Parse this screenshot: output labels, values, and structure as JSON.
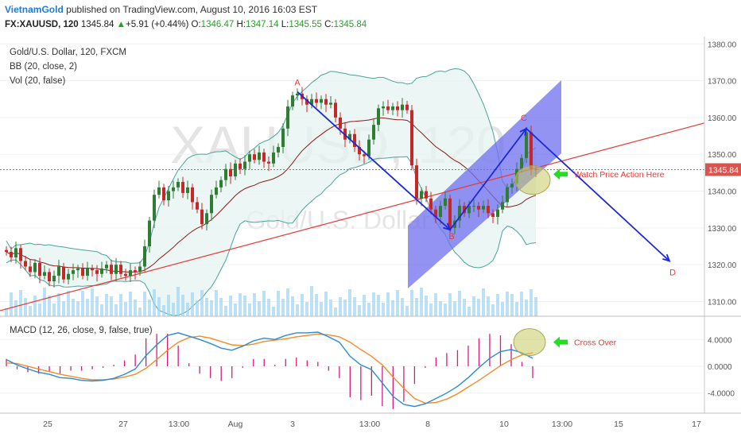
{
  "header": {
    "brand": "VietnamGold",
    "published_text": "published on TradingView.com, August 10, 2016 16:03 EST",
    "symbol": "FX:XAUUSD, 120",
    "last": "1345.84",
    "change": "+5.91 (+0.44%)",
    "o_label": "O:",
    "o": "1346.47",
    "h_label": "H:",
    "h": "1347.14",
    "l_label": "L:",
    "l": "1345.55",
    "c_label": "C:",
    "c": "1345.84"
  },
  "legend": {
    "title": "Gold/U.S. Dollar, 120, FXCM",
    "bb": "BB (20, close, 2)",
    "vol": "Vol (20, false)",
    "macd": "MACD (12, 26, close, 9, false, true)"
  },
  "watermark": {
    "symbol": "XAUUSD, 120",
    "name": "Gold/U.S. Dollar"
  },
  "annotations": {
    "a": "A",
    "b": "B",
    "c": "C",
    "d": "D",
    "watch": "Watch Price Action Here",
    "cross": "Cross Over"
  },
  "colors": {
    "up": "#2e7d32",
    "down": "#c62828",
    "bb": "#4aa39a",
    "bb_fill": "#e6f4f2",
    "ma": "#8b1a1a",
    "arrow": "#1c28d9",
    "channel": "#6f6ff0",
    "trend": "#e53935",
    "circle": "#c8c864",
    "green_arrow": "#22dd22",
    "macd": "#2a8bd6",
    "signal": "#f28c28",
    "hist": "#d81b7a",
    "price_tag": "#d9534f",
    "volume": "#9fd4f0"
  },
  "chart_data": [
    {
      "type": "candlestick",
      "title": "Gold/U.S. Dollar, 120, FXCM",
      "xlabel": "",
      "ylabel": "",
      "ylim": [
        1306,
        1382
      ],
      "y_ticks": [
        1310,
        1320,
        1330,
        1340,
        1350,
        1360,
        1370,
        1380
      ],
      "x_ticks": [
        "25",
        "27",
        "13:00",
        "Aug",
        "3",
        "13:00",
        "8",
        "10",
        "13:00",
        "15",
        "17"
      ],
      "last_price": 1345.84,
      "wave_points": [
        {
          "label": "A",
          "bar": 61,
          "price": 1367
        },
        {
          "label": "B",
          "bar": 93,
          "price": 1329.5
        },
        {
          "label": "C",
          "bar": 109,
          "price": 1357
        },
        {
          "label": "D",
          "bar": 139,
          "price": 1321
        }
      ],
      "closes": [
        1323.5,
        1322.0,
        1324.5,
        1321.0,
        1319.5,
        1318.0,
        1320.5,
        1317.0,
        1318.0,
        1315.5,
        1317.0,
        1319.5,
        1316.0,
        1317.5,
        1318.5,
        1319.0,
        1317.0,
        1319.0,
        1318.5,
        1317.5,
        1319.0,
        1320.0,
        1317.5,
        1320.0,
        1317.5,
        1317.0,
        1318.5,
        1318.0,
        1319.5,
        1325.0,
        1332.0,
        1339.0,
        1341.0,
        1337.5,
        1340.0,
        1341.0,
        1342.5,
        1339.5,
        1341.0,
        1337.0,
        1335.0,
        1331.0,
        1334.0,
        1339.0,
        1341.0,
        1343.0,
        1346.0,
        1344.0,
        1347.5,
        1346.0,
        1348.0,
        1350.0,
        1348.5,
        1350.5,
        1348.0,
        1347.5,
        1350.5,
        1352.0,
        1357.0,
        1363.0,
        1366.0,
        1366.5,
        1365.0,
        1363.5,
        1365.0,
        1364.0,
        1365.0,
        1363.5,
        1364.0,
        1360.0,
        1357.0,
        1354.0,
        1355.5,
        1352.0,
        1350.0,
        1349.5,
        1354.0,
        1358.0,
        1362.5,
        1363.0,
        1362.0,
        1363.0,
        1362.0,
        1363.5,
        1362.0,
        1347.0,
        1338.0,
        1340.0,
        1338.0,
        1335.0,
        1333.0,
        1336.0,
        1338.0,
        1330.0,
        1332.0,
        1336.0,
        1334.0,
        1336.0,
        1336.0,
        1335.0,
        1336.0,
        1334.0,
        1333.0,
        1335.0,
        1337.0,
        1341.0,
        1342.0,
        1346.0,
        1349.0,
        1356.0,
        1346.0,
        1345.84
      ]
    },
    {
      "type": "line",
      "title": "MACD (12, 26, close, 9, false, true)",
      "ylim": [
        -7,
        7
      ],
      "y_ticks": [
        4,
        0,
        -4
      ],
      "y_tick_labels": [
        "4.0000",
        "0.0000",
        "-4.0000"
      ],
      "series": [
        {
          "values": [
            1.0,
            0.2,
            -0.4,
            -0.9,
            -1.2,
            -1.7,
            -1.8,
            -2.1,
            -2.2,
            -2.1,
            -1.8,
            -1.2,
            -0.4,
            1.6,
            3.2,
            4.6,
            5.0,
            4.5,
            4.0,
            3.4,
            2.7,
            2.4,
            3.0,
            3.8,
            4.2,
            4.0,
            4.6,
            5.0,
            5.0,
            5.1,
            4.4,
            3.6,
            1.5,
            0.2,
            -0.5,
            -2.5,
            -4.5,
            -5.7,
            -6.0,
            -5.6,
            -4.8,
            -4.0,
            -3.0,
            -1.7,
            -0.2,
            1.2,
            2.2,
            2.5,
            2.0,
            1.2
          ]
        },
        {
          "values": [
            0.5,
            0.4,
            0.0,
            -0.4,
            -0.8,
            -1.2,
            -1.5,
            -1.8,
            -2.0,
            -2.0,
            -1.9,
            -1.6,
            -1.2,
            -0.3,
            1.0,
            2.4,
            3.6,
            4.3,
            4.5,
            4.2,
            3.7,
            3.2,
            3.1,
            3.3,
            3.7,
            3.9,
            4.1,
            4.4,
            4.6,
            4.8,
            4.7,
            4.4,
            3.6,
            2.5,
            1.5,
            0.2,
            -1.6,
            -3.3,
            -4.8,
            -5.5,
            -5.4,
            -4.9,
            -4.1,
            -3.1,
            -2.1,
            -1.0,
            0.1,
            1.0,
            1.7,
            2.0
          ]
        }
      ]
    }
  ]
}
